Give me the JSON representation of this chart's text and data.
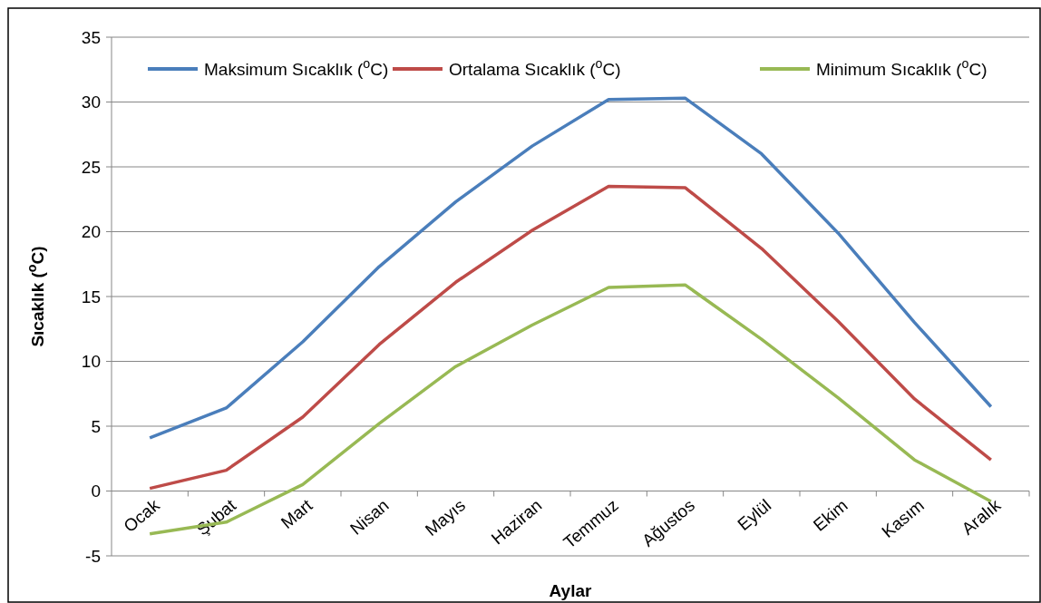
{
  "chart_data": {
    "type": "line",
    "xlabel": "Aylar",
    "ylabel": "Sıcaklık ($^{o}$C)",
    "categories": [
      "Ocak",
      "Şubat",
      "Mart",
      "Nisan",
      "Mayıs",
      "Haziran",
      "Temmuz",
      "Ağustos",
      "Eylül",
      "Ekim",
      "Kasım",
      "Aralık"
    ],
    "series": [
      {
        "name": "Maksimum Sıcaklık ($^{o}$C)",
        "color": "#4a7ebb",
        "values": [
          4.1,
          6.4,
          11.5,
          17.3,
          22.3,
          26.6,
          30.2,
          30.3,
          26.0,
          19.9,
          13.0,
          6.5
        ]
      },
      {
        "name": "Ortalama Sıcaklık ($^{o}$C)",
        "color": "#be4b48",
        "values": [
          0.2,
          1.6,
          5.7,
          11.3,
          16.1,
          20.1,
          23.5,
          23.4,
          18.7,
          13.1,
          7.1,
          2.4
        ]
      },
      {
        "name": "Minimum Sıcaklık ($^{o}$C)",
        "color": "#98b954",
        "values": [
          -3.3,
          -2.4,
          0.5,
          5.2,
          9.6,
          12.8,
          15.7,
          15.9,
          11.7,
          7.2,
          2.4,
          -0.8
        ]
      }
    ],
    "ylim": [
      -5,
      35
    ],
    "yticks": [
      -5,
      0,
      5,
      10,
      15,
      20,
      25,
      30,
      35
    ],
    "grid": "y",
    "legend": "top",
    "marker": "none",
    "line_style": "solid"
  }
}
